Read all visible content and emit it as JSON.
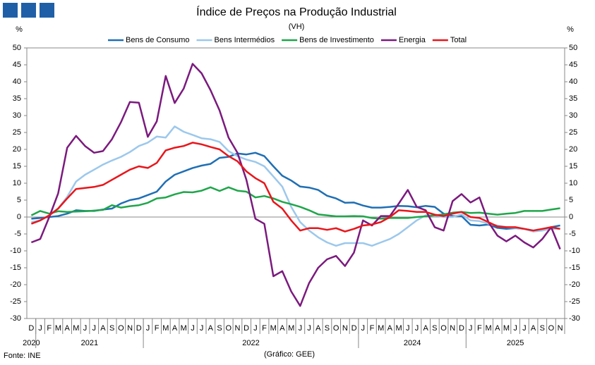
{
  "chart_data": {
    "type": "line",
    "title": "Índice de Preços na Produção Industrial",
    "subtitle": "(VH)",
    "y_label": "%",
    "y2_label": "%",
    "source": "Fonte: INE",
    "credit": "(Gráfico: GEE)",
    "categories": [
      "D",
      "J",
      "F",
      "M",
      "A",
      "M",
      "J",
      "J",
      "A",
      "S",
      "O",
      "N",
      "D",
      "J",
      "F",
      "M",
      "A",
      "M",
      "J",
      "J",
      "A",
      "S",
      "O",
      "N",
      "D",
      "J",
      "F",
      "M",
      "A",
      "M",
      "J",
      "J",
      "A",
      "S",
      "O",
      "N",
      "D",
      "J",
      "F",
      "M",
      "A",
      "M",
      "J",
      "J",
      "A",
      "S",
      "O",
      "N",
      "D",
      "J",
      "F",
      "M",
      "A",
      "M",
      "J",
      "J",
      "A",
      "S",
      "O",
      "N"
    ],
    "years": [
      "2020",
      "2021",
      null,
      null,
      null,
      null,
      null,
      null,
      null,
      null,
      null,
      null,
      null,
      "2022",
      null,
      null,
      null,
      null,
      null,
      null,
      null,
      null,
      null,
      null,
      null,
      null,
      null,
      null,
      null,
      null,
      null,
      null,
      null,
      null,
      null,
      null,
      null,
      "2024",
      null,
      null,
      null,
      null,
      null,
      null,
      null,
      null,
      null,
      null,
      null,
      "2025",
      null,
      null,
      null,
      null,
      null,
      null,
      null,
      null,
      null,
      null
    ],
    "ylim": [
      -30,
      50
    ],
    "yticks": [
      -30,
      -25,
      -20,
      -15,
      -10,
      -5,
      0,
      5,
      10,
      15,
      20,
      25,
      30,
      35,
      40,
      45,
      50
    ],
    "y2lim": [
      -30,
      50
    ],
    "y2ticks": [
      -30,
      -25,
      -20,
      -15,
      -10,
      -5,
      0,
      5,
      10,
      15,
      20,
      25,
      30,
      35,
      40,
      45,
      50
    ],
    "grid": false,
    "legend": "top",
    "series": [
      {
        "name": "Bens de Consumo",
        "color": "#1f6fb4",
        "values": [
          -0.5,
          -0.3,
          0,
          0.3,
          1,
          2,
          1.8,
          1.8,
          2.2,
          2.5,
          4,
          5,
          5.5,
          6.5,
          7.5,
          10.5,
          12.5,
          13.5,
          14.5,
          15.2,
          15.7,
          17.5,
          17.8,
          18.8,
          18.5,
          19,
          18,
          15,
          12.2,
          10.8,
          9,
          8.7,
          8,
          6.3,
          5.5,
          4.2,
          4.3,
          3.4,
          2.8,
          2.8,
          3,
          3.3,
          3.2,
          2.9,
          3.3,
          3,
          1,
          0.3,
          0.3,
          -2.3,
          -2.5,
          -2.2,
          -3.2,
          -3.5,
          -3.3,
          -3.5,
          -4,
          -3.8,
          -3,
          -2.5
        ]
      },
      {
        "name": "Bens Intermédios",
        "color": "#9cc8ec",
        "values": [
          -1.5,
          -1,
          0.5,
          2.5,
          6,
          10.5,
          12.5,
          14,
          15.5,
          16.7,
          17.8,
          19.2,
          21,
          22,
          23.8,
          23.5,
          26.8,
          25.2,
          24.3,
          23.3,
          23,
          22.2,
          19.5,
          18,
          17,
          16.3,
          15,
          12,
          9,
          3,
          -1.5,
          -4,
          -6,
          -7.5,
          -8.5,
          -7.7,
          -7.7,
          -7.7,
          -8.5,
          -7.5,
          -6.5,
          -5,
          -3,
          -1,
          0.5,
          0.5,
          0,
          0,
          0.8,
          -1,
          -1.2,
          -2,
          -2.5,
          -3,
          -3.2,
          -3.5,
          -4.3,
          -4,
          -3.5,
          -3.5
        ]
      },
      {
        "name": "Bens de Investimento",
        "color": "#1fa64a",
        "values": [
          0.5,
          1.8,
          1,
          1.7,
          1.5,
          1.6,
          1.7,
          1.9,
          2.1,
          3.5,
          2.8,
          3.2,
          3.5,
          4.2,
          5.5,
          5.8,
          6.7,
          7.4,
          7.3,
          7.8,
          8.8,
          7.7,
          8.8,
          7.8,
          7.5,
          5.8,
          6.2,
          5.5,
          4.5,
          3.8,
          3,
          2,
          0.8,
          0.5,
          0.2,
          0.2,
          0.3,
          0.2,
          -0.3,
          -0.5,
          -0.3,
          -0.3,
          -0.3,
          0,
          0.2,
          0.5,
          0.8,
          1.3,
          1.5,
          1.2,
          1.3,
          1,
          0.7,
          1,
          1.2,
          1.8,
          1.8,
          1.8,
          2.2,
          2.6
        ]
      },
      {
        "name": "Energia",
        "color": "#7b1a7e",
        "values": [
          -7.5,
          -6.5,
          0,
          7,
          20.5,
          24,
          21,
          19,
          19.5,
          23,
          28,
          34,
          33.8,
          23.7,
          28.3,
          41.7,
          33.7,
          38,
          45.3,
          42.5,
          37.5,
          31.5,
          23.5,
          19,
          11,
          -0.5,
          -2,
          -17.5,
          -16,
          -22,
          -26.3,
          -19.5,
          -15,
          -12.5,
          -11.5,
          -14.5,
          -10.5,
          -1,
          -2.5,
          0.3,
          0.3,
          4,
          8,
          3,
          2,
          -3,
          -4,
          4.7,
          6.8,
          4.3,
          5.8,
          -1.5,
          -5.5,
          -7.2,
          -5.5,
          -7.5,
          -9,
          -6.5,
          -3,
          -9.5
        ]
      },
      {
        "name": "Total",
        "color": "#e8161b",
        "values": [
          -2,
          -1,
          0.5,
          2.5,
          5.5,
          8.3,
          8.6,
          8.9,
          9.5,
          11,
          12.5,
          14,
          15,
          14.5,
          16,
          19.7,
          20.5,
          21,
          22,
          21.5,
          20.7,
          20,
          18,
          16.5,
          13.5,
          11.5,
          10,
          4.5,
          2.5,
          -1,
          -4,
          -3.3,
          -3.3,
          -3.8,
          -3.3,
          -4.3,
          -3.5,
          -2.5,
          -2.2,
          -1.5,
          0,
          2,
          1.8,
          1.5,
          1.5,
          0.7,
          0.3,
          1,
          1.5,
          0,
          -0.3,
          -1.5,
          -2.8,
          -3,
          -3,
          -3.5,
          -4,
          -3.5,
          -3,
          -3.5
        ]
      }
    ]
  }
}
